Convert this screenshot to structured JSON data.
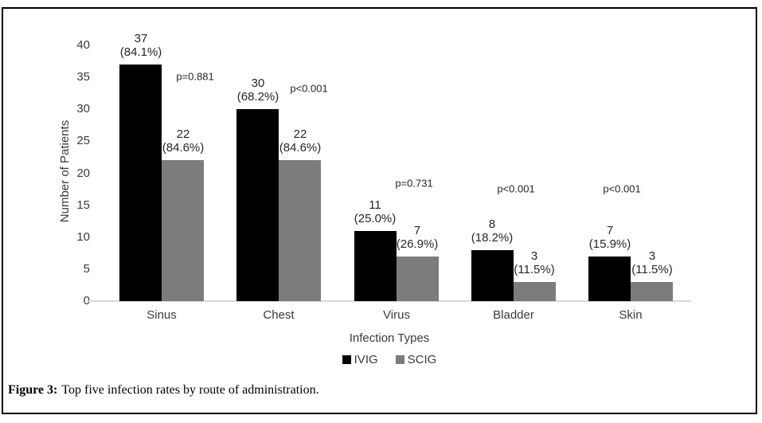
{
  "figure": {
    "caption_prefix": "Figure 3:",
    "caption_text": "Top five infection rates by route of administration."
  },
  "chart_data": {
    "type": "bar",
    "title": "",
    "xlabel": "Infection Types",
    "ylabel": "Number of Patients",
    "ylim": [
      0,
      40
    ],
    "yticks": [
      0,
      5,
      10,
      15,
      20,
      25,
      30,
      35,
      40
    ],
    "grid": false,
    "legend_position": "bottom",
    "categories": [
      "Sinus",
      "Chest",
      "Virus",
      "Bladder",
      "Skin"
    ],
    "series": [
      {
        "name": "IVIG",
        "color": "#000000",
        "values": [
          37,
          30,
          11,
          8,
          7
        ],
        "percent_labels": [
          "84.1%",
          "68.2%",
          "25.0%",
          "18.2%",
          "15.9%"
        ]
      },
      {
        "name": "SCIG",
        "color": "#7c7c7c",
        "values": [
          22,
          22,
          7,
          3,
          3
        ],
        "percent_labels": [
          "84.6%",
          "84.6%",
          "26.9%",
          "11.5%",
          "11.5%"
        ]
      }
    ],
    "p_values": [
      "p=0.881",
      "p<0.001",
      "p=0.731",
      "p<0.001",
      "p<0.001"
    ],
    "p_value_anchors": [
      {
        "x": 245,
        "y": 96
      },
      {
        "x": 388,
        "y": 111
      },
      {
        "x": 520,
        "y": 230
      },
      {
        "x": 648,
        "y": 237
      },
      {
        "x": 781,
        "y": 237
      }
    ],
    "axis_line_color": "#d9d9d9"
  }
}
